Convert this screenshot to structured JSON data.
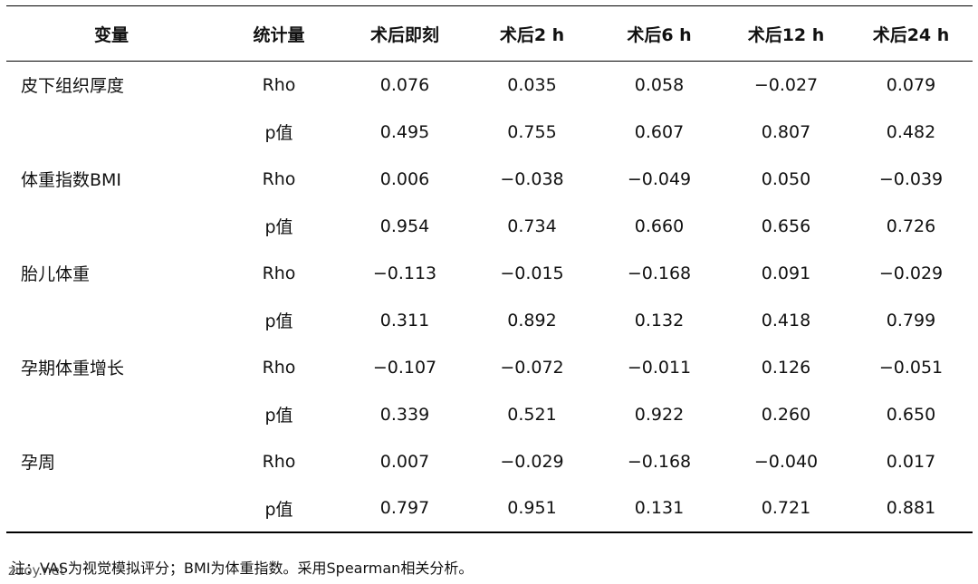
{
  "table": {
    "headers": [
      "变量",
      "统计量",
      "术后即刻",
      "术后2 h",
      "术后6 h",
      "术后12 h",
      "术后24 h"
    ],
    "rows": [
      {
        "variable": "皮下组织厚度",
        "stat": "Rho",
        "values": [
          "0.076",
          "0.035",
          "0.058",
          "−0.027",
          "0.079"
        ]
      },
      {
        "variable": "",
        "stat": "p值",
        "values": [
          "0.495",
          "0.755",
          "0.607",
          "0.807",
          "0.482"
        ]
      },
      {
        "variable": "体重指数BMI",
        "stat": "Rho",
        "values": [
          "0.006",
          "−0.038",
          "−0.049",
          "0.050",
          "−0.039"
        ]
      },
      {
        "variable": "",
        "stat": "p值",
        "values": [
          "0.954",
          "0.734",
          "0.660",
          "0.656",
          "0.726"
        ]
      },
      {
        "variable": "胎儿体重",
        "stat": "Rho",
        "values": [
          "−0.113",
          "−0.015",
          "−0.168",
          "0.091",
          "−0.029"
        ]
      },
      {
        "variable": "",
        "stat": "p值",
        "values": [
          "0.311",
          "0.892",
          "0.132",
          "0.418",
          "0.799"
        ]
      },
      {
        "variable": "孕期体重增长",
        "stat": "Rho",
        "values": [
          "−0.107",
          "−0.072",
          "−0.011",
          "0.126",
          "−0.051"
        ]
      },
      {
        "variable": "",
        "stat": "p值",
        "values": [
          "0.339",
          "0.521",
          "0.922",
          "0.260",
          "0.650"
        ]
      },
      {
        "variable": "孕周",
        "stat": "Rho",
        "values": [
          "0.007",
          "−0.029",
          "−0.168",
          "−0.040",
          "0.017"
        ]
      },
      {
        "variable": "",
        "stat": "p值",
        "values": [
          "0.797",
          "0.951",
          "0.131",
          "0.721",
          "0.881"
        ]
      }
    ]
  },
  "note": "注：VAS为视觉模拟评分；BMI为体重指数。采用Spearman相关分析。",
  "watermark": "zuoy.net"
}
